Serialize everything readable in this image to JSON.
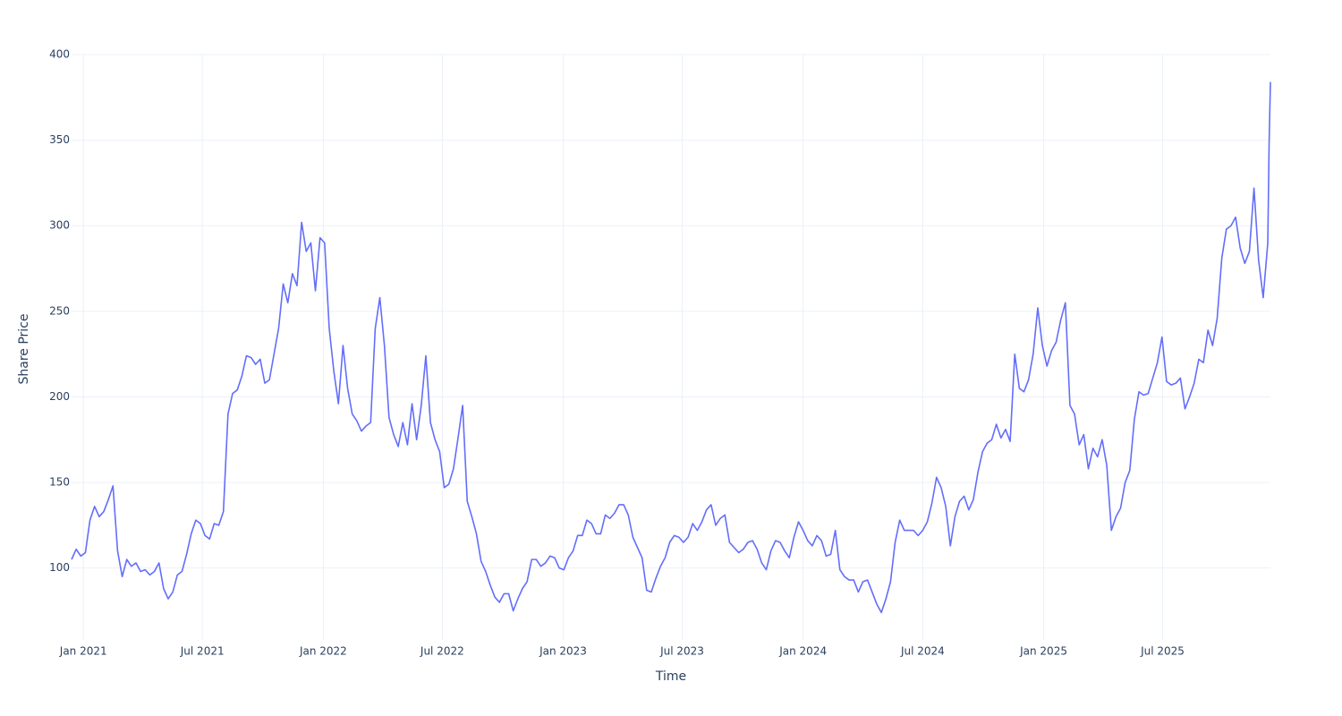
{
  "chart_data": {
    "type": "line",
    "x_label": "Time",
    "y_label": "Share Price",
    "color": "#636efa",
    "grid": true,
    "xlim": [
      "2020-12-14",
      "2025-12-12"
    ],
    "xticks": [
      {
        "value": "2021-01-01",
        "label": "Jan 2021"
      },
      {
        "value": "2021-07-01",
        "label": "Jul 2021"
      },
      {
        "value": "2022-01-01",
        "label": "Jan 2022"
      },
      {
        "value": "2022-07-01",
        "label": "Jul 2022"
      },
      {
        "value": "2023-01-01",
        "label": "Jan 2023"
      },
      {
        "value": "2023-07-01",
        "label": "Jul 2023"
      },
      {
        "value": "2024-01-01",
        "label": "Jan 2024"
      },
      {
        "value": "2024-07-01",
        "label": "Jul 2024"
      },
      {
        "value": "2025-01-01",
        "label": "Jan 2025"
      },
      {
        "value": "2025-07-01",
        "label": "Jul 2025"
      }
    ],
    "ylim": [
      58,
      400
    ],
    "yticks": [
      100,
      150,
      200,
      250,
      300,
      350,
      400
    ],
    "x": [
      "2020-12-14",
      "2020-12-21",
      "2020-12-28",
      "2021-01-04",
      "2021-01-11",
      "2021-01-18",
      "2021-01-25",
      "2021-02-01",
      "2021-02-08",
      "2021-02-15",
      "2021-02-22",
      "2021-03-01",
      "2021-03-08",
      "2021-03-15",
      "2021-03-22",
      "2021-03-29",
      "2021-04-05",
      "2021-04-12",
      "2021-04-19",
      "2021-04-26",
      "2021-05-03",
      "2021-05-10",
      "2021-05-17",
      "2021-05-24",
      "2021-05-31",
      "2021-06-07",
      "2021-06-14",
      "2021-06-21",
      "2021-06-28",
      "2021-07-05",
      "2021-07-12",
      "2021-07-19",
      "2021-07-26",
      "2021-08-02",
      "2021-08-09",
      "2021-08-16",
      "2021-08-23",
      "2021-08-30",
      "2021-09-06",
      "2021-09-13",
      "2021-09-20",
      "2021-09-27",
      "2021-10-04",
      "2021-10-11",
      "2021-10-18",
      "2021-10-25",
      "2021-11-01",
      "2021-11-08",
      "2021-11-15",
      "2021-11-22",
      "2021-11-29",
      "2021-12-06",
      "2021-12-13",
      "2021-12-20",
      "2021-12-27",
      "2022-01-03",
      "2022-01-10",
      "2022-01-17",
      "2022-01-24",
      "2022-01-31",
      "2022-02-07",
      "2022-02-14",
      "2022-02-21",
      "2022-02-28",
      "2022-03-07",
      "2022-03-14",
      "2022-03-21",
      "2022-03-28",
      "2022-04-04",
      "2022-04-11",
      "2022-04-18",
      "2022-04-25",
      "2022-05-02",
      "2022-05-09",
      "2022-05-16",
      "2022-05-23",
      "2022-05-30",
      "2022-06-06",
      "2022-06-13",
      "2022-06-20",
      "2022-06-27",
      "2022-07-04",
      "2022-07-11",
      "2022-07-18",
      "2022-07-25",
      "2022-08-01",
      "2022-08-08",
      "2022-08-15",
      "2022-08-22",
      "2022-08-29",
      "2022-09-05",
      "2022-09-12",
      "2022-09-19",
      "2022-09-26",
      "2022-10-03",
      "2022-10-10",
      "2022-10-17",
      "2022-10-24",
      "2022-10-31",
      "2022-11-07",
      "2022-11-14",
      "2022-11-21",
      "2022-11-28",
      "2022-12-05",
      "2022-12-12",
      "2022-12-19",
      "2022-12-26",
      "2023-01-02",
      "2023-01-09",
      "2023-01-16",
      "2023-01-23",
      "2023-01-30",
      "2023-02-06",
      "2023-02-13",
      "2023-02-20",
      "2023-02-27",
      "2023-03-06",
      "2023-03-13",
      "2023-03-20",
      "2023-03-27",
      "2023-04-03",
      "2023-04-10",
      "2023-04-17",
      "2023-04-24",
      "2023-05-01",
      "2023-05-08",
      "2023-05-15",
      "2023-05-22",
      "2023-05-29",
      "2023-06-05",
      "2023-06-12",
      "2023-06-19",
      "2023-06-26",
      "2023-07-03",
      "2023-07-10",
      "2023-07-17",
      "2023-07-24",
      "2023-07-31",
      "2023-08-07",
      "2023-08-14",
      "2023-08-21",
      "2023-08-28",
      "2023-09-04",
      "2023-09-11",
      "2023-09-18",
      "2023-09-25",
      "2023-10-02",
      "2023-10-09",
      "2023-10-16",
      "2023-10-23",
      "2023-10-30",
      "2023-11-06",
      "2023-11-13",
      "2023-11-20",
      "2023-11-27",
      "2023-12-04",
      "2023-12-11",
      "2023-12-18",
      "2023-12-25",
      "2024-01-01",
      "2024-01-08",
      "2024-01-15",
      "2024-01-22",
      "2024-01-29",
      "2024-02-05",
      "2024-02-12",
      "2024-02-19",
      "2024-02-26",
      "2024-03-04",
      "2024-03-11",
      "2024-03-18",
      "2024-03-25",
      "2024-04-01",
      "2024-04-08",
      "2024-04-15",
      "2024-04-22",
      "2024-04-29",
      "2024-05-06",
      "2024-05-13",
      "2024-05-20",
      "2024-05-27",
      "2024-06-03",
      "2024-06-10",
      "2024-06-17",
      "2024-06-24",
      "2024-07-01",
      "2024-07-08",
      "2024-07-15",
      "2024-07-22",
      "2024-07-29",
      "2024-08-05",
      "2024-08-12",
      "2024-08-19",
      "2024-08-26",
      "2024-09-02",
      "2024-09-09",
      "2024-09-16",
      "2024-09-23",
      "2024-09-30",
      "2024-10-07",
      "2024-10-14",
      "2024-10-21",
      "2024-10-28",
      "2024-11-04",
      "2024-11-11",
      "2024-11-18",
      "2024-11-25",
      "2024-12-02",
      "2024-12-09",
      "2024-12-16",
      "2024-12-23",
      "2024-12-30",
      "2025-01-06",
      "2025-01-13",
      "2025-01-20",
      "2025-01-27",
      "2025-02-03",
      "2025-02-10",
      "2025-02-17",
      "2025-02-24",
      "2025-03-03",
      "2025-03-10",
      "2025-03-17",
      "2025-03-24",
      "2025-03-31",
      "2025-04-07",
      "2025-04-14",
      "2025-04-21",
      "2025-04-28",
      "2025-05-05",
      "2025-05-12",
      "2025-05-19",
      "2025-05-26",
      "2025-06-02",
      "2025-06-09",
      "2025-06-16",
      "2025-06-23",
      "2025-06-30",
      "2025-07-07",
      "2025-07-14",
      "2025-07-21",
      "2025-07-28",
      "2025-08-04",
      "2025-08-11",
      "2025-08-18",
      "2025-08-25",
      "2025-09-01",
      "2025-09-08",
      "2025-09-15",
      "2025-09-22",
      "2025-09-29",
      "2025-10-06",
      "2025-10-13",
      "2025-10-20",
      "2025-10-27",
      "2025-11-03",
      "2025-11-10",
      "2025-11-17",
      "2025-11-24",
      "2025-12-01",
      "2025-12-08",
      "2025-12-10",
      "2025-12-12"
    ],
    "values": [
      105,
      111,
      107,
      109,
      128,
      136,
      130,
      133,
      140,
      148,
      110,
      95,
      105,
      101,
      103,
      98,
      99,
      96,
      98,
      103,
      88,
      82,
      86,
      96,
      98,
      108,
      120,
      128,
      126,
      119,
      117,
      126,
      125,
      133,
      190,
      202,
      204,
      212,
      224,
      223,
      219,
      222,
      208,
      210,
      225,
      240,
      266,
      255,
      272,
      265,
      302,
      285,
      290,
      262,
      293,
      290,
      240,
      215,
      196,
      230,
      205,
      190,
      186,
      180,
      183,
      185,
      240,
      258,
      230,
      188,
      178,
      171,
      185,
      172,
      196,
      175,
      195,
      224,
      185,
      175,
      168,
      147,
      149,
      158,
      176,
      195,
      139,
      130,
      120,
      104,
      98,
      90,
      83,
      80,
      85,
      85,
      75,
      82,
      88,
      92,
      105,
      105,
      101,
      103,
      107,
      106,
      100,
      99,
      106,
      110,
      119,
      119,
      128,
      126,
      120,
      120,
      131,
      129,
      132,
      137,
      137,
      131,
      118,
      112,
      106,
      87,
      86,
      94,
      101,
      106,
      115,
      119,
      118,
      115,
      118,
      126,
      122,
      127,
      134,
      137,
      125,
      129,
      131,
      115,
      112,
      109,
      111,
      115,
      116,
      111,
      103,
      99,
      110,
      116,
      115,
      110,
      106,
      118,
      127,
      122,
      116,
      113,
      119,
      116,
      107,
      108,
      122,
      99,
      95,
      93,
      93,
      86,
      92,
      93,
      86,
      79,
      74,
      82,
      92,
      115,
      128,
      122,
      122,
      122,
      119,
      122,
      127,
      138,
      153,
      147,
      136,
      113,
      130,
      139,
      142,
      134,
      140,
      156,
      168,
      173,
      175,
      184,
      176,
      181,
      174,
      225,
      205,
      203,
      210,
      225,
      252,
      230,
      218,
      227,
      232,
      245,
      255,
      195,
      190,
      172,
      178,
      158,
      170,
      165,
      175,
      160,
      122,
      130,
      135,
      150,
      157,
      187,
      203,
      201,
      202,
      211,
      220,
      235,
      209,
      207,
      208,
      211,
      193,
      200,
      208,
      222,
      220,
      239,
      230,
      246,
      281,
      298,
      300,
      305,
      287,
      278,
      285,
      322,
      280,
      258,
      290,
      348,
      384
    ]
  }
}
